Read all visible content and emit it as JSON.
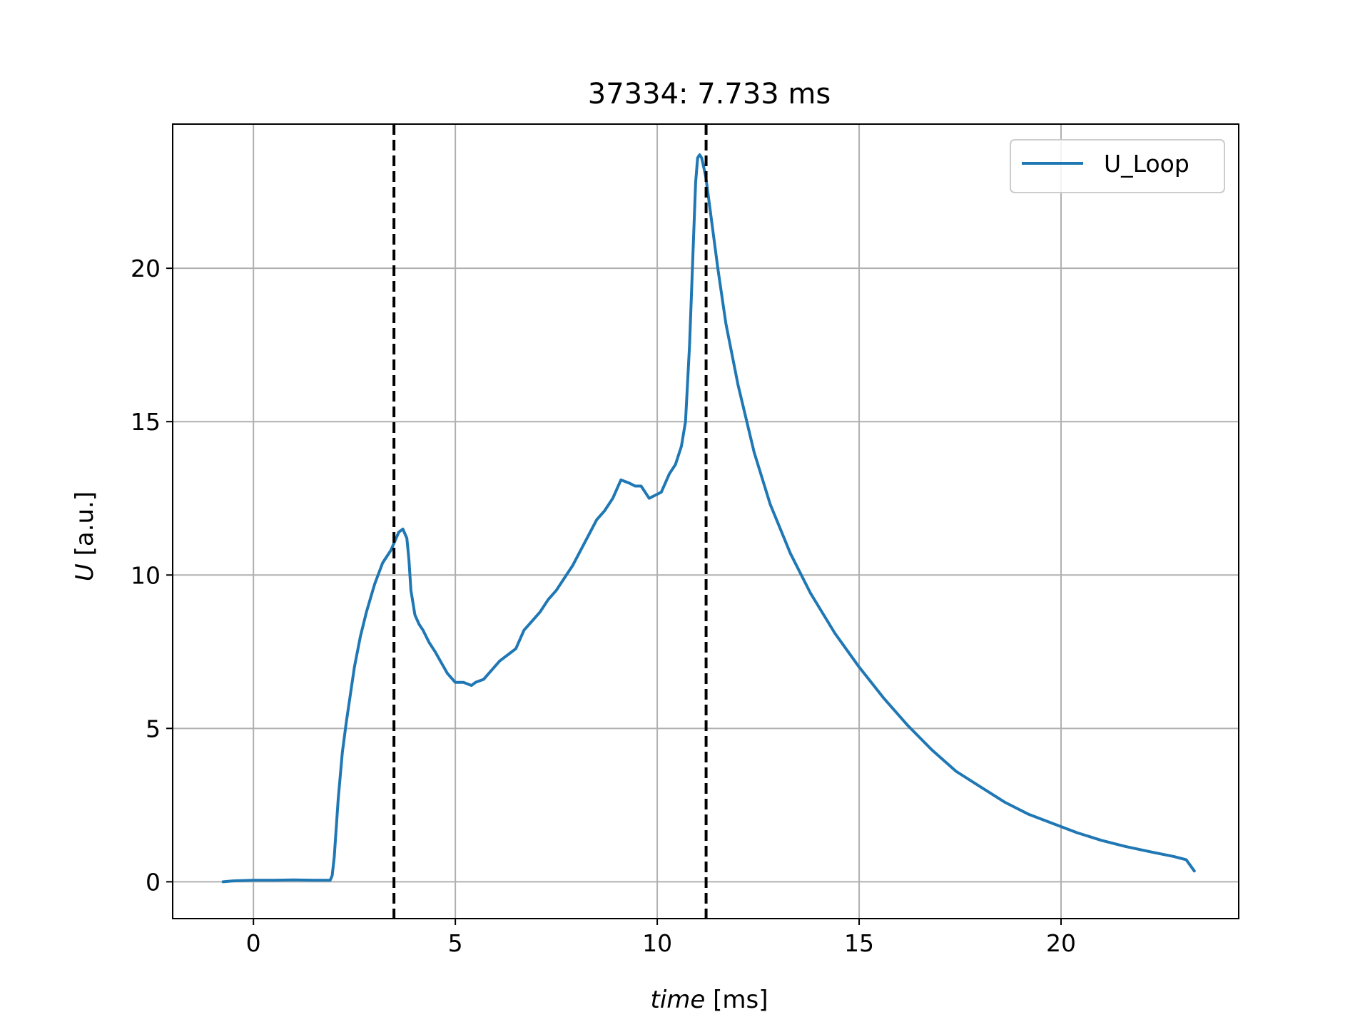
{
  "chart_data": {
    "type": "line",
    "title": "37334: 7.733 ms",
    "xlabel_var": "time",
    "xlabel_unit": " [ms]",
    "ylabel_var": "U",
    "ylabel_unit": " [a.u.]",
    "xlim": [
      -2,
      24.4
    ],
    "ylim": [
      -1.2,
      24.7
    ],
    "xticks": [
      0,
      5,
      10,
      15,
      20
    ],
    "yticks": [
      0,
      5,
      10,
      15,
      20
    ],
    "grid": true,
    "legend_position": "top-right",
    "series": [
      {
        "name": "U_Loop",
        "color": "#1f77b4",
        "x": [
          -0.75,
          -0.5,
          0,
          0.5,
          1.0,
          1.5,
          1.9,
          1.95,
          2.0,
          2.1,
          2.2,
          2.3,
          2.4,
          2.5,
          2.65,
          2.8,
          3.0,
          3.2,
          3.4,
          3.5,
          3.6,
          3.7,
          3.8,
          3.85,
          3.9,
          4.0,
          4.1,
          4.2,
          4.35,
          4.5,
          4.8,
          5.0,
          5.2,
          5.4,
          5.5,
          5.7,
          5.9,
          6.1,
          6.3,
          6.5,
          6.7,
          6.9,
          7.1,
          7.3,
          7.5,
          7.7,
          7.9,
          8.1,
          8.3,
          8.5,
          8.7,
          8.9,
          9.1,
          9.3,
          9.45,
          9.6,
          9.8,
          9.95,
          10.1,
          10.3,
          10.45,
          10.6,
          10.7,
          10.8,
          10.9,
          10.95,
          11.0,
          11.05,
          11.1,
          11.15,
          11.2,
          11.3,
          11.5,
          11.7,
          12.0,
          12.4,
          12.8,
          13.3,
          13.8,
          14.4,
          15.0,
          15.6,
          16.2,
          16.8,
          17.4,
          18.0,
          18.6,
          19.2,
          19.8,
          20.4,
          21.0,
          21.6,
          22.2,
          22.8,
          23.1,
          23.3
        ],
        "values": [
          0.0,
          0.03,
          0.05,
          0.05,
          0.06,
          0.05,
          0.05,
          0.2,
          0.8,
          2.7,
          4.2,
          5.2,
          6.1,
          7.0,
          8.0,
          8.8,
          9.7,
          10.4,
          10.8,
          11.1,
          11.4,
          11.5,
          11.2,
          10.5,
          9.5,
          8.7,
          8.4,
          8.2,
          7.8,
          7.5,
          6.8,
          6.5,
          6.5,
          6.4,
          6.5,
          6.6,
          6.9,
          7.2,
          7.4,
          7.6,
          8.2,
          8.5,
          8.8,
          9.2,
          9.5,
          9.9,
          10.3,
          10.8,
          11.3,
          11.8,
          12.1,
          12.5,
          13.1,
          13.0,
          12.9,
          12.9,
          12.5,
          12.6,
          12.7,
          13.3,
          13.6,
          14.2,
          15.0,
          17.5,
          21.0,
          22.8,
          23.6,
          23.7,
          23.6,
          23.3,
          23.0,
          22.0,
          20.0,
          18.2,
          16.2,
          14.0,
          12.3,
          10.7,
          9.4,
          8.1,
          7.0,
          6.0,
          5.1,
          4.3,
          3.6,
          3.1,
          2.6,
          2.2,
          1.9,
          1.6,
          1.35,
          1.15,
          0.98,
          0.82,
          0.72,
          0.35
        ]
      }
    ],
    "vlines": [
      {
        "x": 3.48,
        "color": "#000000",
        "style": "dashed"
      },
      {
        "x": 11.21,
        "color": "#000000",
        "style": "dashed"
      }
    ]
  }
}
